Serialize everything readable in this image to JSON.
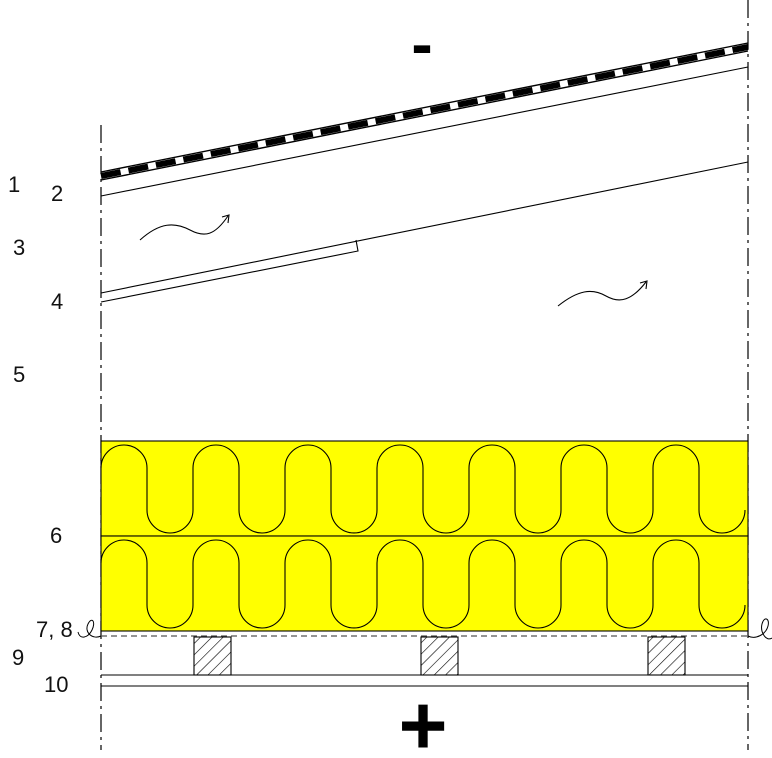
{
  "signs": {
    "minus": "-",
    "plus": "+"
  },
  "labels": [
    "1",
    "2",
    "3",
    "4",
    "5",
    "6",
    "7, 8",
    "9",
    "10"
  ],
  "colors": {
    "insulation": "#ffff00",
    "line": "#000000",
    "hatch": "#000000",
    "background": "#ffffff"
  }
}
